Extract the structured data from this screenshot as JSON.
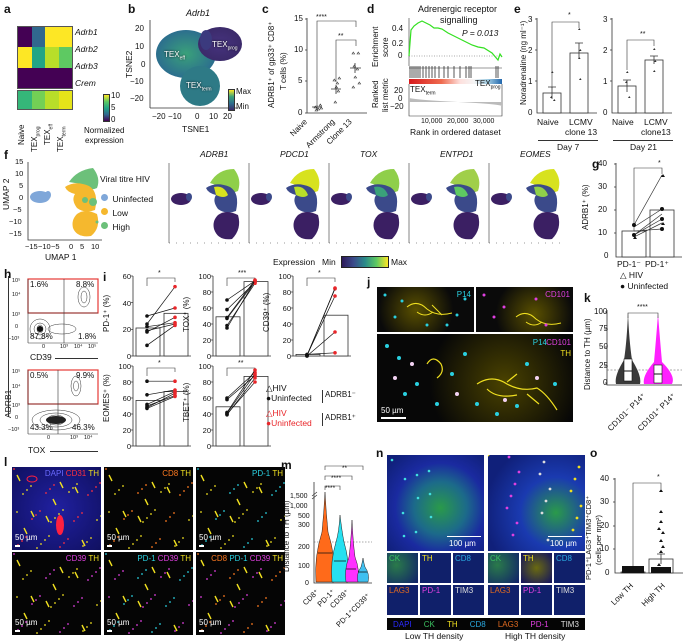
{
  "panels": {
    "a": {
      "label": "a",
      "genes": [
        "Adrb1",
        "Adrb2",
        "Adrb3",
        "Crem"
      ],
      "columns": [
        "Naive",
        "TEXprog",
        "TEXeff",
        "TEXterm"
      ],
      "column_display": [
        {
          "main": "Naive",
          "sub": ""
        },
        {
          "main": "TEX",
          "sub": "prog"
        },
        {
          "main": "TEX",
          "sub": "eff"
        },
        {
          "main": "TEX",
          "sub": "term"
        }
      ],
      "colorbar_ticks": [
        "10",
        "5",
        "0"
      ],
      "colorbar_title_1": "Normalized",
      "colorbar_title_2": "expression",
      "heatmap_colors": [
        [
          "#440154",
          "#31688e",
          "#fde725",
          "#fde725"
        ],
        [
          "#fde725",
          "#21a585",
          "#b8de29",
          "#5ec962"
        ],
        [
          "#440154",
          "#440154",
          "#440154",
          "#440154"
        ],
        [
          "#35b779",
          "#73d055",
          "#b8de29",
          "#e5e419"
        ]
      ]
    },
    "b": {
      "label": "b",
      "title": "Adrb1",
      "xlabel": "TSNE1",
      "ylabel": "TSNE2",
      "xticks": [
        "−20",
        "−10",
        "0",
        "10",
        "20"
      ],
      "yticks": [
        "20",
        "10",
        "0",
        "−10",
        "−20"
      ],
      "clusters": [
        {
          "main": "TEX",
          "sub": "eff"
        },
        {
          "main": "TEX",
          "sub": "prog"
        },
        {
          "main": "TEX",
          "sub": "term"
        }
      ],
      "legend_max": "Max",
      "legend_min": "Min"
    },
    "c": {
      "label": "c",
      "ylabel_1": "ADRB1⁺ of gp33⁺ CD8⁺",
      "ylabel_2": "T cells (%)",
      "yticks": [
        "15",
        "10",
        "5",
        "0"
      ],
      "categories": [
        "Naive",
        "Armstrong",
        "Clone 13"
      ],
      "sig_top": "****",
      "sig_inner": "**"
    },
    "d": {
      "label": "d",
      "title_1": "Adrenergic receptor",
      "title_2": "signalling",
      "pvalue": "P = 0.013",
      "ylabel_es_1": "Enrichment",
      "ylabel_es_2": "score",
      "es_ticks": [
        "0.4",
        "0.2",
        "0"
      ],
      "ylabel_rank_1": "Ranked",
      "ylabel_rank_2": "list metric",
      "rank_ticks": [
        "20",
        "0",
        "−20"
      ],
      "left_group": {
        "main": "TEX",
        "sub": "term"
      },
      "right_group": {
        "main": "TEX",
        "sub": "prog"
      },
      "xticks": [
        "10,000",
        "20,000",
        "30,000"
      ],
      "xlabel": "Rank in ordered dataset"
    },
    "e": {
      "label": "e",
      "ylabel": "Noradrenaline (ng ml⁻¹)",
      "yticks": [
        "3",
        "2",
        "1",
        "0"
      ],
      "left": {
        "categories_1": [
          "Naive",
          "LCMV"
        ],
        "categories_2": [
          "",
          "clone 13"
        ],
        "group": "Day 7",
        "sig": "*"
      },
      "right": {
        "categories_1": [
          "Naive",
          "LCMV"
        ],
        "categories_2": [
          "",
          "clone13"
        ],
        "group": "Day 21",
        "sig": "**"
      }
    },
    "f": {
      "label": "f",
      "umap_xlabel": "UMAP 1",
      "umap_ylabel": "UMAP 2",
      "xticks": [
        "−15",
        "−10",
        "−5",
        "0",
        "5",
        "10"
      ],
      "yticks": [
        "15",
        "10",
        "5",
        "0",
        "−5",
        "−10",
        "−15"
      ],
      "legend_title": "Viral titre HIV",
      "legend": [
        {
          "label": "Uninfected",
          "color": "#7fa7d9"
        },
        {
          "label": "Low",
          "color": "#f5b82e"
        },
        {
          "label": "High",
          "color": "#6cc07a"
        }
      ],
      "genes": [
        "ADRB1",
        "PDCD1",
        "TOX",
        "ENTPD1",
        "EOMES"
      ],
      "expr_label": "Expression",
      "expr_min": "Min",
      "expr_max": "Max"
    },
    "g": {
      "label": "g",
      "ylabel": "ADRB1⁺ (%)",
      "yticks": [
        "40",
        "30",
        "20",
        "10",
        "0"
      ],
      "categories": [
        "PD-1⁻",
        "PD-1⁺"
      ],
      "sig": "*",
      "legend": [
        {
          "symbol": "△",
          "label": "HIV"
        },
        {
          "symbol": "●",
          "label": "Uninfected"
        }
      ]
    },
    "h": {
      "label": "h",
      "ylabel": "ADRB1",
      "top": {
        "xlabel": "CD39",
        "q_tl": "1.6%",
        "q_tr": "8.8%",
        "q_bl": "87.8%",
        "q_br": "1.8%"
      },
      "bottom": {
        "xlabel": "TOX",
        "q_tl": "0.5%",
        "q_tr": "9.9%",
        "q_bl": "43.3%",
        "q_br": "46.3%"
      },
      "yticks": [
        "10⁵",
        "10⁴",
        "10³",
        "0",
        "−10³"
      ],
      "xticks_top": [
        "0",
        "10³",
        "10⁴",
        "10⁵"
      ],
      "xticks_bottom": [
        "0",
        "10³",
        "10⁴"
      ]
    },
    "i": {
      "label": "i",
      "plots": [
        {
          "ylabel": "PD-1⁺ (%)",
          "yticks": [
            "60",
            "40",
            "20",
            "0"
          ],
          "sig": "*"
        },
        {
          "ylabel": "TOX⁺ (%)",
          "yticks": [
            "100",
            "80",
            "60",
            "40",
            "20",
            "0"
          ],
          "sig": "***"
        },
        {
          "ylabel": "CD39⁺ (%)",
          "yticks": [
            "100",
            "80",
            "60",
            "40",
            "20",
            "0"
          ],
          "sig": "*"
        },
        {
          "ylabel": "EOMES⁺ (%)",
          "yticks": [
            "100",
            "80",
            "60",
            "40",
            "20",
            "0"
          ],
          "sig": "*"
        },
        {
          "ylabel": "TBET⁺ (%)",
          "yticks": [
            "100",
            "80",
            "60",
            "40",
            "20",
            "0"
          ],
          "sig": "**"
        }
      ],
      "legend": [
        {
          "symbol": "△",
          "label": "HIV",
          "color": "#111"
        },
        {
          "symbol": "●",
          "label": "Uninfected",
          "color": "#111"
        },
        {
          "symbol": "△",
          "label": "HIV",
          "color": "#e8262a"
        },
        {
          "symbol": "●",
          "label": "Uninfected",
          "color": "#e8262a"
        }
      ],
      "group_neg": "ADRB1⁻",
      "group_pos": "ADRB1⁺"
    },
    "j": {
      "label": "j",
      "tile1_label": "P14",
      "tile2_label": "CD101",
      "main_labels": [
        "P14",
        "CD101",
        "TH"
      ],
      "scale": "50 µm"
    },
    "k": {
      "label": "k",
      "ylabel": "Distance to TH (µm)",
      "yticks": [
        "100",
        "75",
        "50",
        "25",
        "0"
      ],
      "categories": [
        "CD101⁻ P14⁺",
        "CD101⁺ P14⁺"
      ],
      "sig": "****"
    },
    "l": {
      "label": "l",
      "tiles": [
        {
          "labels": [
            {
              "t": "DAPI",
              "c": "#6a6aff"
            },
            {
              "t": "CD31",
              "c": "#ff3040"
            },
            {
              "t": "TH",
              "c": "#f0e020"
            }
          ],
          "scale": "50 µm"
        },
        {
          "labels": [
            {
              "t": "CD8",
              "c": "#ff7a20"
            },
            {
              "t": "TH",
              "c": "#f0e020"
            }
          ],
          "scale": "50 µm"
        },
        {
          "labels": [
            {
              "t": "PD-1",
              "c": "#2ad0e0"
            },
            {
              "t": "TH",
              "c": "#f0e020"
            }
          ],
          "scale": "50 µm"
        },
        {
          "labels": [
            {
              "t": "CD39",
              "c": "#e040e0"
            },
            {
              "t": "TH",
              "c": "#f0e020"
            }
          ],
          "scale": "50 µm"
        },
        {
          "labels": [
            {
              "t": "PD-1",
              "c": "#2ad0e0"
            },
            {
              "t": "CD39",
              "c": "#e040e0"
            },
            {
              "t": "TH",
              "c": "#f0e020"
            }
          ],
          "scale": "50 µm"
        },
        {
          "labels": [
            {
              "t": "CD8",
              "c": "#ff7a20"
            },
            {
              "t": "PD-1",
              "c": "#2ad0e0"
            },
            {
              "t": "CD39",
              "c": "#e040e0"
            },
            {
              "t": "TH",
              "c": "#f0e020"
            }
          ],
          "scale": "50 µm"
        }
      ]
    },
    "m": {
      "label": "m",
      "ylabel": "Distance to TH (µm)",
      "yticks": [
        "1,500",
        "1,000",
        "500",
        "300",
        "200",
        "100",
        "0"
      ],
      "categories": [
        "CD8⁺",
        "PD-1⁺",
        "CD39⁺",
        "PD-1⁺CD39⁺"
      ],
      "sigs": [
        "****",
        "****",
        "**"
      ]
    },
    "n": {
      "label": "n",
      "scale": "100 µm",
      "small_labels_row1": [
        {
          "t": "CK",
          "c": "#3cc060"
        },
        {
          "t": "TH",
          "c": "#f0e020"
        },
        {
          "t": "CD8",
          "c": "#2aa8e0"
        }
      ],
      "small_labels_row2": [
        {
          "t": "LAG3",
          "c": "#e06a20"
        },
        {
          "t": "PD-1",
          "c": "#e040e0"
        },
        {
          "t": "TIM3",
          "c": "#dddddd"
        }
      ],
      "legend": [
        {
          "t": "DAPI",
          "c": "#2a2aff"
        },
        {
          "t": "CK",
          "c": "#3cc060"
        },
        {
          "t": "TH",
          "c": "#f0e020"
        },
        {
          "t": "CD8",
          "c": "#2aa8e0"
        },
        {
          "t": "LAG3",
          "c": "#e06a20"
        },
        {
          "t": "PD-1",
          "c": "#e040e0"
        },
        {
          "t": "TIM3",
          "c": "#dddddd"
        }
      ],
      "caption_left": "Low TH density",
      "caption_right": "High TH density"
    },
    "o": {
      "label": "o",
      "ylabel_1": "PD-1⁺LAG3⁺TIM3⁺CD8⁺",
      "ylabel_2": "(cells per mm²)",
      "yticks": [
        "40",
        "30",
        "20",
        "10",
        "0"
      ],
      "categories": [
        "Low TH",
        "High TH"
      ],
      "sig": "*"
    }
  },
  "chart_data": [
    {
      "panel": "c",
      "type": "scatter",
      "categories": [
        "Naive",
        "Armstrong",
        "Clone 13"
      ],
      "means": [
        1.0,
        3.9,
        7.0
      ],
      "ylabel": "ADRB1+ of gp33+ CD8+ T cells (%)",
      "ylim": [
        0,
        15
      ]
    },
    {
      "panel": "d",
      "type": "line",
      "title": "Adrenergic receptor signalling",
      "peak_es": 0.5,
      "pvalue": 0.013,
      "xlabel": "Rank in ordered dataset",
      "xlim": [
        0,
        33000
      ]
    },
    {
      "panel": "e-day7",
      "type": "bar",
      "categories": [
        "Naive",
        "LCMV clone 13"
      ],
      "values": [
        0.63,
        1.9
      ],
      "ylabel": "Noradrenaline (ng/ml)",
      "ylim": [
        0,
        3
      ]
    },
    {
      "panel": "e-day21",
      "type": "bar",
      "categories": [
        "Naive",
        "LCMV clone13"
      ],
      "values": [
        0.85,
        1.68
      ],
      "ylabel": "Noradrenaline (ng/ml)",
      "ylim": [
        0,
        3
      ]
    },
    {
      "panel": "g",
      "type": "bar",
      "categories": [
        "PD-1-",
        "PD-1+"
      ],
      "values": [
        11.5,
        20
      ],
      "ylabel": "ADRB1+ (%)",
      "ylim": [
        0,
        40
      ]
    },
    {
      "panel": "i-PD1",
      "type": "bar",
      "categories": [
        "ADRB1-",
        "ADRB1+"
      ],
      "values": [
        21,
        32
      ],
      "ylim": [
        0,
        60
      ]
    },
    {
      "panel": "i-TOX",
      "type": "bar",
      "categories": [
        "ADRB1-",
        "ADRB1+"
      ],
      "values": [
        49,
        93
      ],
      "ylim": [
        0,
        100
      ]
    },
    {
      "panel": "i-CD39",
      "type": "bar",
      "categories": [
        "ADRB1-",
        "ADRB1+"
      ],
      "values": [
        2,
        51
      ],
      "ylim": [
        0,
        100
      ]
    },
    {
      "panel": "i-EOMES",
      "type": "bar",
      "categories": [
        "ADRB1-",
        "ADRB1+"
      ],
      "values": [
        57,
        68
      ],
      "ylim": [
        0,
        100
      ]
    },
    {
      "panel": "i-TBET",
      "type": "bar",
      "categories": [
        "ADRB1-",
        "ADRB1+"
      ],
      "values": [
        49,
        87
      ],
      "ylim": [
        0,
        100
      ]
    },
    {
      "panel": "k",
      "type": "box",
      "categories": [
        "CD101- P14+",
        "CD101+ P14+"
      ],
      "medians": [
        20,
        15
      ],
      "ylim": [
        0,
        105
      ],
      "reference_line": 21
    },
    {
      "panel": "m",
      "type": "violin",
      "categories": [
        "CD8+",
        "PD-1+",
        "CD39+",
        "PD-1+CD39+"
      ],
      "medians": [
        110,
        80,
        40,
        30
      ],
      "reference_line": 108
    },
    {
      "panel": "o",
      "type": "bar",
      "categories": [
        "Low TH",
        "High TH"
      ],
      "values": [
        0.5,
        6
      ],
      "ylim": [
        0,
        40
      ]
    }
  ]
}
